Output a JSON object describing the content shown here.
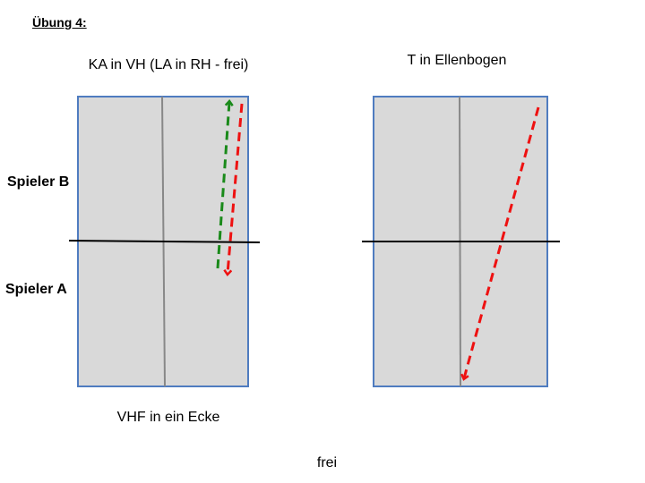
{
  "title": "Übung 4:",
  "player_labels": [
    "Spieler B",
    "Spieler A"
  ],
  "tables": [
    {
      "caption": "KA in VH (LA in RH - frei)",
      "footer": "VHF in ein Ecke"
    },
    {
      "caption": "T in Ellenbogen"
    }
  ],
  "footer": "frei"
}
